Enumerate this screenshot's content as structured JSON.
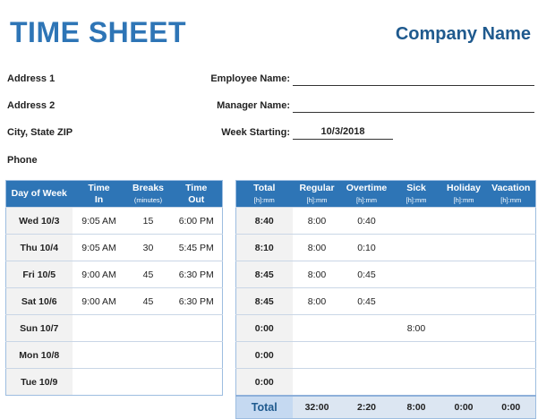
{
  "header": {
    "title": "TIME SHEET",
    "company": "Company Name"
  },
  "address": {
    "line1": "Address 1",
    "line2": "Address 2",
    "line3": "City, State  ZIP",
    "line4": "Phone"
  },
  "fields": {
    "employee_label": "Employee Name:",
    "employee_value": "",
    "manager_label": "Manager Name:",
    "manager_value": "",
    "week_label": "Week Starting:",
    "week_value": "10/3/2018"
  },
  "left_table": {
    "headers": [
      {
        "l1": "Day of Week",
        "l2": ""
      },
      {
        "l1": "Time",
        "l2": "In"
      },
      {
        "l1": "Breaks",
        "l2": "(minutes)"
      },
      {
        "l1": "Time",
        "l2": "Out"
      }
    ],
    "rows": [
      [
        "Wed 10/3",
        "9:05 AM",
        "15",
        "6:00 PM"
      ],
      [
        "Thu 10/4",
        "9:05 AM",
        "30",
        "5:45 PM"
      ],
      [
        "Fri 10/5",
        "9:00 AM",
        "45",
        "6:30 PM"
      ],
      [
        "Sat 10/6",
        "9:00 AM",
        "45",
        "6:30 PM"
      ],
      [
        "Sun 10/7",
        "",
        "",
        ""
      ],
      [
        "Mon 10/8",
        "",
        "",
        ""
      ],
      [
        "Tue 10/9",
        "",
        "",
        ""
      ]
    ]
  },
  "right_table": {
    "headers": [
      {
        "l1": "Total",
        "l2": "[h]:mm"
      },
      {
        "l1": "Regular",
        "l2": "[h]:mm"
      },
      {
        "l1": "Overtime",
        "l2": "[h]:mm"
      },
      {
        "l1": "Sick",
        "l2": "[h]:mm"
      },
      {
        "l1": "Holiday",
        "l2": "[h]:mm"
      },
      {
        "l1": "Vacation",
        "l2": "[h]:mm"
      }
    ],
    "rows": [
      [
        "8:40",
        "8:00",
        "0:40",
        "",
        "",
        ""
      ],
      [
        "8:10",
        "8:00",
        "0:10",
        "",
        "",
        ""
      ],
      [
        "8:45",
        "8:00",
        "0:45",
        "",
        "",
        ""
      ],
      [
        "8:45",
        "8:00",
        "0:45",
        "",
        "",
        ""
      ],
      [
        "0:00",
        "",
        "",
        "8:00",
        "",
        ""
      ],
      [
        "0:00",
        "",
        "",
        "",
        "",
        ""
      ],
      [
        "0:00",
        "",
        "",
        "",
        "",
        ""
      ]
    ],
    "totals": [
      "Total",
      "32:00",
      "2:20",
      "8:00",
      "0:00",
      "0:00"
    ]
  },
  "colors": {
    "accent": "#2e75b6",
    "total_bg": "#dce6f2"
  }
}
